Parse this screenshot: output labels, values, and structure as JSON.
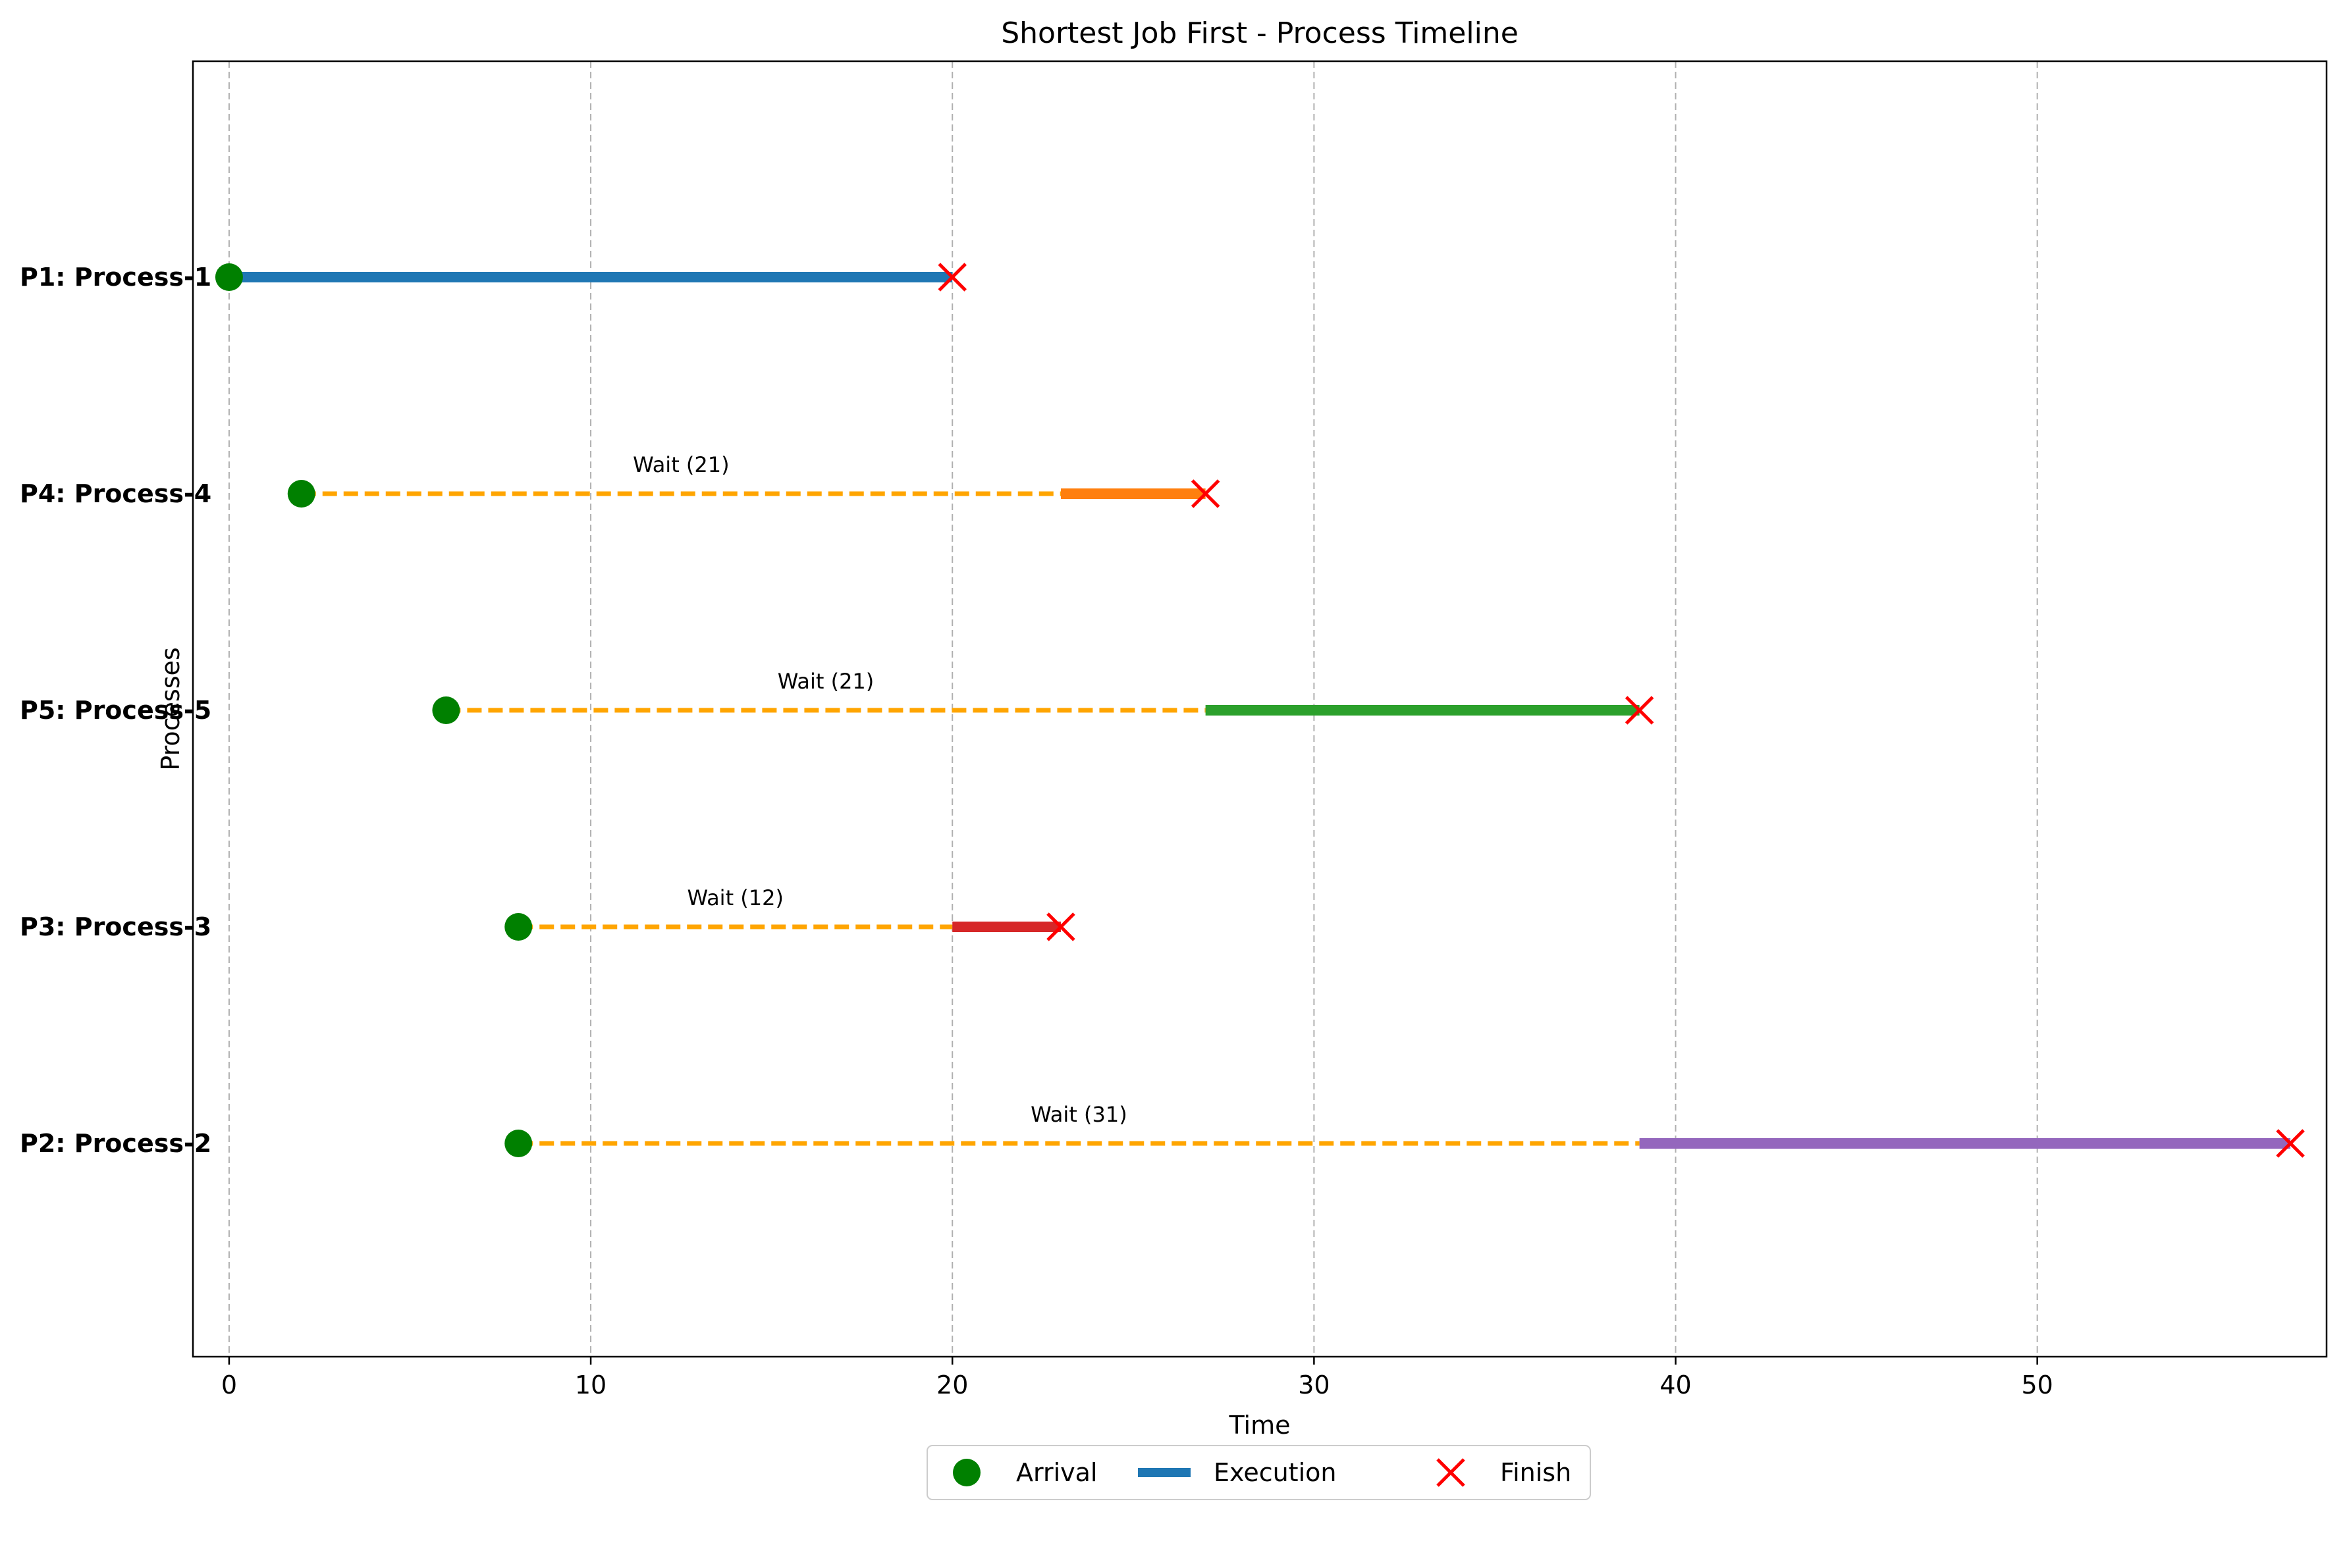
{
  "chart_data": {
    "type": "timeline",
    "title": "Shortest Job First - Process Timeline",
    "xlabel": "Time",
    "ylabel": "Processes",
    "xlim": [
      -1,
      58
    ],
    "xticks": [
      0,
      10,
      20,
      30,
      40,
      50
    ],
    "grid": "vertical dashed",
    "legend_position": "bottom-center",
    "legend": [
      {
        "label": "Arrival",
        "marker": "circle",
        "color": "#008000"
      },
      {
        "label": "Execution",
        "marker": "line",
        "color": "#1f77b4"
      },
      {
        "label": "Finish",
        "marker": "x",
        "color": "#ff0000"
      }
    ],
    "wait_color": "#ffa500",
    "processes": [
      {
        "label": "P1: Process-1",
        "arrival": 0,
        "start": 0,
        "finish": 20,
        "wait": 0,
        "wait_label": "",
        "color": "#1f77b4"
      },
      {
        "label": "P4: Process-4",
        "arrival": 2,
        "start": 23,
        "finish": 27,
        "wait": 21,
        "wait_label": "Wait (21)",
        "color": "#ff7f0e"
      },
      {
        "label": "P5: Process-5",
        "arrival": 6,
        "start": 27,
        "finish": 39,
        "wait": 21,
        "wait_label": "Wait (21)",
        "color": "#2ca02c"
      },
      {
        "label": "P3: Process-3",
        "arrival": 8,
        "start": 20,
        "finish": 23,
        "wait": 12,
        "wait_label": "Wait (12)",
        "color": "#d62728"
      },
      {
        "label": "P2: Process-2",
        "arrival": 8,
        "start": 39,
        "finish": 57,
        "wait": 31,
        "wait_label": "Wait (31)",
        "color": "#9467bd"
      }
    ]
  }
}
